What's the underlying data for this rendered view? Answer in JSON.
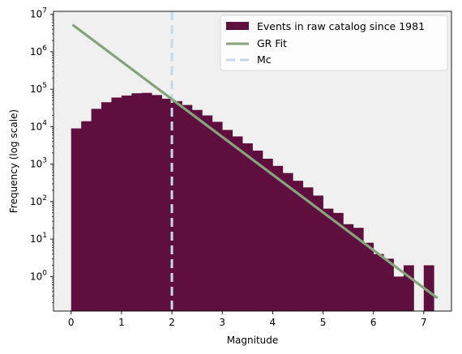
{
  "chart_data": {
    "type": "bar",
    "xlabel": "Magnitude",
    "ylabel": "Frequency (log scale)",
    "xlim": [
      -0.35,
      7.55
    ],
    "ylim": [
      0.12,
      12000000
    ],
    "y_scale": "log",
    "background_color": "#f0f0f0",
    "x_ticks": [
      0,
      1,
      2,
      3,
      4,
      5,
      6,
      7
    ],
    "x_tick_labels": [
      "0",
      "1",
      "2",
      "3",
      "4",
      "5",
      "6",
      "7"
    ],
    "y_ticks": [
      1,
      10,
      100,
      1000,
      10000,
      100000,
      1000000,
      10000000
    ],
    "y_tick_labels": [
      {
        "base": "10",
        "exp": "0"
      },
      {
        "base": "10",
        "exp": "1"
      },
      {
        "base": "10",
        "exp": "2"
      },
      {
        "base": "10",
        "exp": "3"
      },
      {
        "base": "10",
        "exp": "4"
      },
      {
        "base": "10",
        "exp": "5"
      },
      {
        "base": "10",
        "exp": "6"
      },
      {
        "base": "10",
        "exp": "7"
      }
    ],
    "histogram": {
      "name": "Events in raw catalog since 1981",
      "color": "#5e0f3e",
      "bin_width": 0.2,
      "bins": [
        {
          "x0": 0.0,
          "count": 9000
        },
        {
          "x0": 0.2,
          "count": 14000
        },
        {
          "x0": 0.4,
          "count": 30000
        },
        {
          "x0": 0.6,
          "count": 45000
        },
        {
          "x0": 0.8,
          "count": 60000
        },
        {
          "x0": 1.0,
          "count": 68000
        },
        {
          "x0": 1.2,
          "count": 78000
        },
        {
          "x0": 1.4,
          "count": 80000
        },
        {
          "x0": 1.6,
          "count": 70000
        },
        {
          "x0": 1.8,
          "count": 56000
        },
        {
          "x0": 2.0,
          "count": 48000
        },
        {
          "x0": 2.2,
          "count": 38000
        },
        {
          "x0": 2.4,
          "count": 28000
        },
        {
          "x0": 2.6,
          "count": 20000
        },
        {
          "x0": 2.8,
          "count": 13500
        },
        {
          "x0": 3.0,
          "count": 8200
        },
        {
          "x0": 3.2,
          "count": 5500
        },
        {
          "x0": 3.4,
          "count": 3600
        },
        {
          "x0": 3.6,
          "count": 2300
        },
        {
          "x0": 3.8,
          "count": 1400
        },
        {
          "x0": 4.0,
          "count": 900
        },
        {
          "x0": 4.2,
          "count": 580
        },
        {
          "x0": 4.4,
          "count": 360
        },
        {
          "x0": 4.6,
          "count": 240
        },
        {
          "x0": 4.8,
          "count": 145
        },
        {
          "x0": 5.0,
          "count": 65
        },
        {
          "x0": 5.2,
          "count": 50
        },
        {
          "x0": 5.4,
          "count": 25
        },
        {
          "x0": 5.6,
          "count": 20
        },
        {
          "x0": 5.8,
          "count": 8
        },
        {
          "x0": 6.0,
          "count": 4
        },
        {
          "x0": 6.2,
          "count": 3
        },
        {
          "x0": 6.4,
          "count": 1
        },
        {
          "x0": 6.6,
          "count": 2
        },
        {
          "x0": 6.8,
          "count": 0
        },
        {
          "x0": 7.0,
          "count": 2
        }
      ]
    },
    "gr_fit": {
      "name": "GR Fit",
      "color": "#86a47c",
      "points": [
        [
          0.05,
          5000000
        ],
        [
          7.25,
          0.28
        ]
      ]
    },
    "mc_line": {
      "name": "Mc",
      "color": "#c6d9ec",
      "x": 2.0
    },
    "legend_position": "top-right"
  }
}
